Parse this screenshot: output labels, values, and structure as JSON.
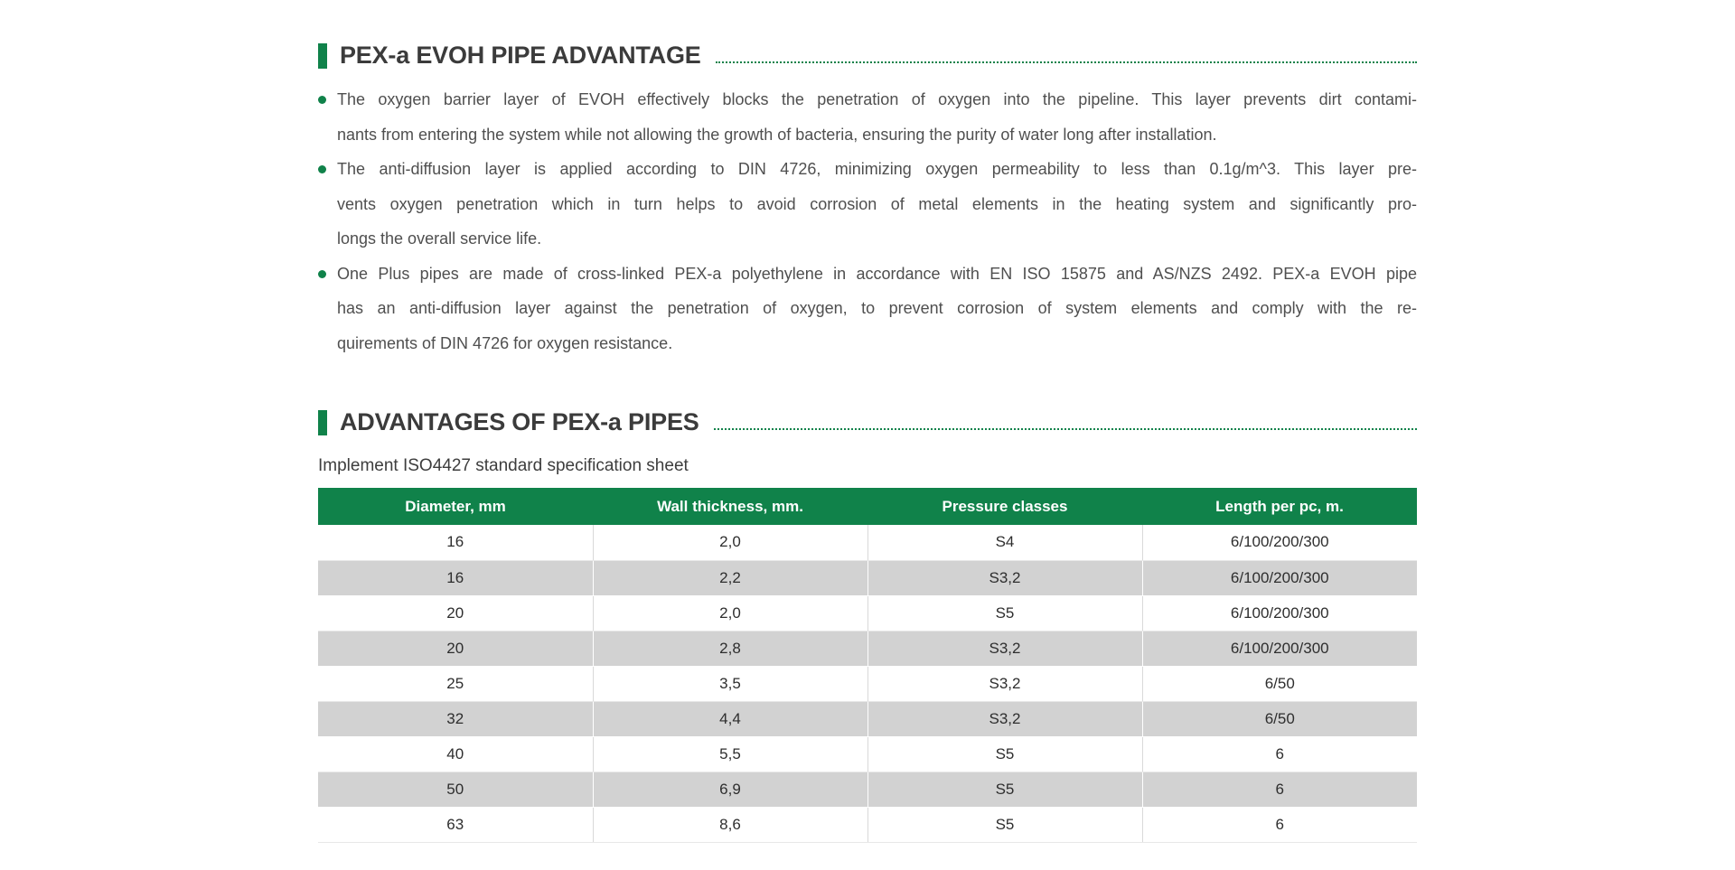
{
  "theme": {
    "green": "#10824a",
    "row_alt_gray": "#d2d2d2",
    "heading_color": "#3b3b3b",
    "body_color": "#4f4f4f"
  },
  "section1": {
    "title": "PEX-a EVOH PIPE ADVANTAGE",
    "bullets": [
      {
        "lines": [
          "The oxygen barrier layer of EVOH effectively blocks the penetration of oxygen into the pipeline. This layer prevents dirt contami-",
          "nants from entering the system while not allowing the growth of bacteria, ensuring the purity of water long after installation."
        ]
      },
      {
        "lines": [
          "The anti-diffusion layer is applied according to DIN 4726, minimizing oxygen permeability to less than 0.1g/m^3. This layer pre-",
          "vents oxygen penetration which in turn helps to avoid corrosion of metal elements in the heating system and significantly pro-",
          "longs the overall service life."
        ]
      },
      {
        "lines": [
          "One Plus pipes are made of cross-linked PEX-a polyethylene in accordance with EN ISO 15875 and AS/NZS 2492. PEX-a EVOH pipe",
          "has an anti-diffusion layer against the penetration of oxygen, to prevent corrosion of system elements and comply with the re-",
          "quirements of DIN 4726 for oxygen resistance."
        ]
      }
    ]
  },
  "section2": {
    "title": "ADVANTAGES OF PEX-a PIPES",
    "subtitle": "Implement ISO4427 standard specification sheet",
    "table": {
      "headers": [
        "Diameter, mm",
        "Wall thickness, mm.",
        "Pressure classes",
        "Length per pc, m."
      ],
      "rows": [
        [
          "16",
          "2,0",
          "S4",
          "6/100/200/300"
        ],
        [
          "16",
          "2,2",
          "S3,2",
          "6/100/200/300"
        ],
        [
          "20",
          "2,0",
          "S5",
          "6/100/200/300"
        ],
        [
          "20",
          "2,8",
          "S3,2",
          "6/100/200/300"
        ],
        [
          "25",
          "3,5",
          "S3,2",
          "6/50"
        ],
        [
          "32",
          "4,4",
          "S3,2",
          "6/50"
        ],
        [
          "40",
          "5,5",
          "S5",
          "6"
        ],
        [
          "50",
          "6,9",
          "S5",
          "6"
        ],
        [
          "63",
          "8,6",
          "S5",
          "6"
        ]
      ]
    }
  }
}
